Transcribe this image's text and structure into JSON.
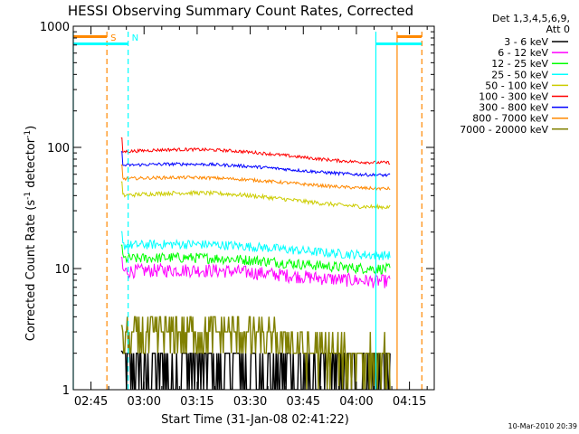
{
  "chart_data": {
    "type": "line",
    "title": "HESSI Observing Summary Count Rates, Corrected",
    "xlabel": "Start Time (31-Jan-08 02:41:22)",
    "ylabel": "Corrected Count Rate (s",
    "ylabel_sup1": "-1",
    "ylabel_mid": " detector",
    "ylabel_sup2": "-1",
    "ylabel_end": ")",
    "yscale": "log",
    "ylim": [
      1,
      1000
    ],
    "xlim_minutes": [
      40.0,
      142.0
    ],
    "x_ticks": [
      {
        "label": "02:45",
        "m": 45
      },
      {
        "label": "03:00",
        "m": 60
      },
      {
        "label": "03:15",
        "m": 75
      },
      {
        "label": "03:30",
        "m": 90
      },
      {
        "label": "03:45",
        "m": 105
      },
      {
        "label": "04:00",
        "m": 120
      },
      {
        "label": "04:15",
        "m": 135
      }
    ],
    "y_ticks": [
      {
        "label": "1",
        "v": 1
      },
      {
        "label": "10",
        "v": 10
      },
      {
        "label": "100",
        "v": 100
      },
      {
        "label": "1000",
        "v": 1000
      }
    ],
    "legend_header": [
      "Det 1,3,4,5,6,9,",
      "Att 0"
    ],
    "legend_position": "right",
    "series": [
      {
        "name": "3 - 6 keV",
        "color": "#000000",
        "base": 1.6,
        "bump": 0.0,
        "noise": 0.45,
        "quantized": true
      },
      {
        "name": "6 - 12 keV",
        "color": "#ff00ff",
        "base": 9.5,
        "bump": 0.06,
        "noise": 0.13
      },
      {
        "name": "12 - 25 keV",
        "color": "#00ff00",
        "base": 12.0,
        "bump": 0.06,
        "noise": 0.1
      },
      {
        "name": "25 - 50 keV",
        "color": "#00ffff",
        "base": 15.5,
        "bump": 0.06,
        "noise": 0.09
      },
      {
        "name": "50 - 100 keV",
        "color": "#cccc00",
        "base": 40.0,
        "bump": 0.09,
        "noise": 0.04
      },
      {
        "name": "100 - 300 keV",
        "color": "#ff0000",
        "base": 92.0,
        "bump": 0.08,
        "noise": 0.03
      },
      {
        "name": "300 - 800 keV",
        "color": "#0000ff",
        "base": 71.0,
        "bump": 0.06,
        "noise": 0.03
      },
      {
        "name": "800 - 7000 keV",
        "color": "#ff8800",
        "base": 55.0,
        "bump": 0.06,
        "noise": 0.03
      },
      {
        "name": "7000 - 20000 keV",
        "color": "#808000",
        "base": 2.6,
        "bump": 0.2,
        "noise": 0.4,
        "quantized": true
      }
    ],
    "data_interval_minutes": [
      53.5,
      129.5
    ],
    "markers": [
      {
        "label": "S",
        "color": "#ff8800",
        "style": "dashed",
        "m": 49.5
      },
      {
        "label": "N",
        "color": "#00ffff",
        "style": "dashed",
        "m": 55.5
      },
      {
        "label": "",
        "color": "#00ffff",
        "style": "solid",
        "m": 40.0
      },
      {
        "label": "",
        "color": "#00ffff",
        "style": "solid",
        "m": 125.5
      },
      {
        "label": "",
        "color": "#ff8800",
        "style": "solid",
        "m": 131.5
      },
      {
        "label": "",
        "color": "#ff8800",
        "style": "dashed",
        "m": 138.5
      }
    ],
    "footer": "10-Mar-2010 20:39"
  }
}
